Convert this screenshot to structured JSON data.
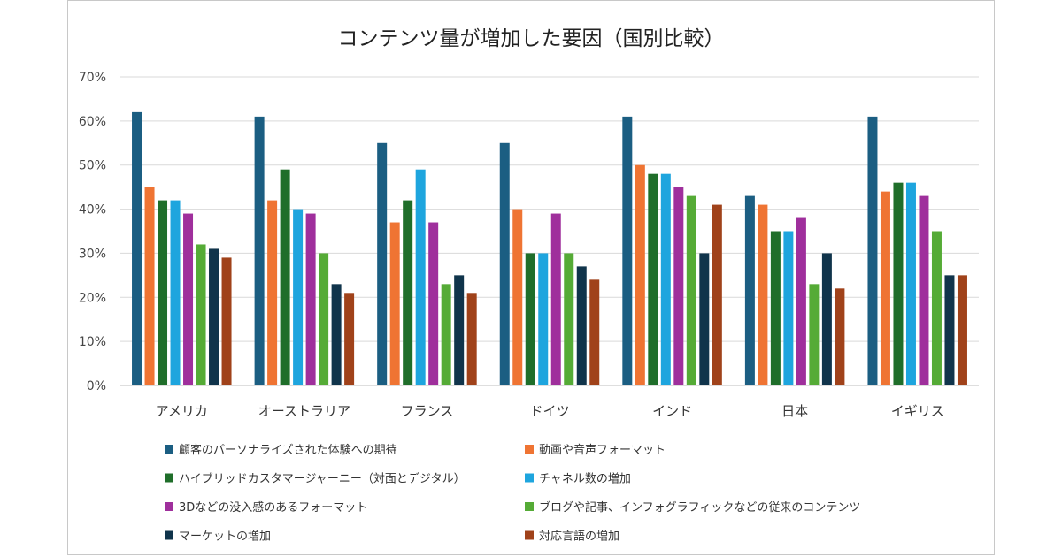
{
  "chart_data": {
    "type": "bar",
    "title": "コンテンツ量が増加した要因（国別比較）",
    "xlabel": "",
    "ylabel": "",
    "ylim": [
      0,
      70
    ],
    "y_ticks": [
      "0%",
      "10%",
      "20%",
      "30%",
      "40%",
      "50%",
      "60%",
      "70%"
    ],
    "y_tick_values": [
      0,
      10,
      20,
      30,
      40,
      50,
      60,
      70
    ],
    "grid": true,
    "legend_position": "bottom",
    "categories": [
      "アメリカ",
      "オーストラリア",
      "フランス",
      "ドイツ",
      "インド",
      "日本",
      "イギリス"
    ],
    "series": [
      {
        "name": "顧客のパーソナライズされた体験への期待",
        "color": "#1b5e82",
        "values": [
          62,
          61,
          55,
          55,
          61,
          43,
          61
        ]
      },
      {
        "name": "動画や音声フォーマット",
        "color": "#ef7433",
        "values": [
          45,
          42,
          37,
          40,
          50,
          41,
          44
        ]
      },
      {
        "name": "ハイブリッドカスタマージャーニー（対面とデジタル）",
        "color": "#1f6e2a",
        "values": [
          42,
          49,
          42,
          30,
          48,
          35,
          46
        ]
      },
      {
        "name": "チャネル数の増加",
        "color": "#1ea5de",
        "values": [
          42,
          40,
          49,
          30,
          48,
          35,
          46
        ]
      },
      {
        "name": "3Dなどの没入感のあるフォーマット",
        "color": "#9f2f9c",
        "values": [
          39,
          39,
          37,
          39,
          45,
          38,
          43
        ]
      },
      {
        "name": "ブログや記事、インフォグラフィックなどの従来のコンテンツ",
        "color": "#55ab36",
        "values": [
          32,
          30,
          23,
          30,
          43,
          23,
          35
        ]
      },
      {
        "name": "マーケットの増加",
        "color": "#10344b",
        "values": [
          31,
          23,
          25,
          27,
          30,
          30,
          25
        ]
      },
      {
        "name": "対応言語の増加",
        "color": "#a0421a",
        "values": [
          29,
          21,
          21,
          24,
          41,
          22,
          25
        ]
      }
    ]
  }
}
